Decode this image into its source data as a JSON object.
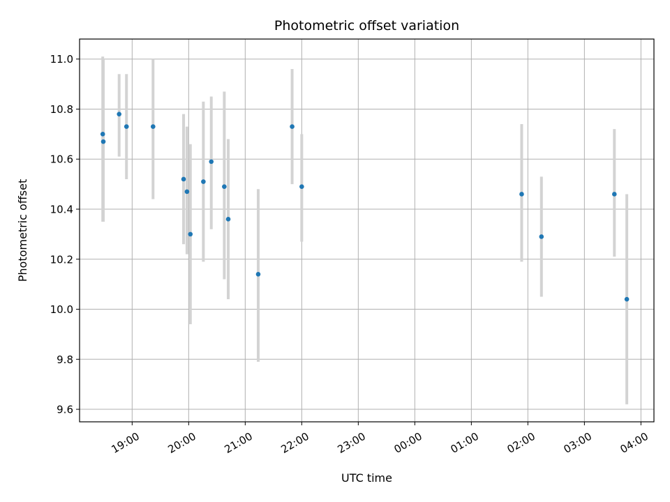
{
  "chart_data": {
    "type": "scatter",
    "title": "Photometric offset variation",
    "xlabel": "UTC time",
    "ylabel": "Photometric offset",
    "grid": true,
    "x_unit": "hours since 18:00 UTC",
    "xlim": [
      0.07,
      10.23
    ],
    "ylim": [
      9.55,
      11.08
    ],
    "xticks": [
      {
        "value": 1.0,
        "label": "19:00"
      },
      {
        "value": 2.0,
        "label": "20:00"
      },
      {
        "value": 3.0,
        "label": "21:00"
      },
      {
        "value": 4.0,
        "label": "22:00"
      },
      {
        "value": 5.0,
        "label": "23:00"
      },
      {
        "value": 6.0,
        "label": "00:00"
      },
      {
        "value": 7.0,
        "label": "01:00"
      },
      {
        "value": 8.0,
        "label": "02:00"
      },
      {
        "value": 9.0,
        "label": "03:00"
      },
      {
        "value": 10.0,
        "label": "04:00"
      }
    ],
    "yticks": [
      {
        "value": 9.6,
        "label": "9.6"
      },
      {
        "value": 9.8,
        "label": "9.8"
      },
      {
        "value": 10.0,
        "label": "10.0"
      },
      {
        "value": 10.2,
        "label": "10.2"
      },
      {
        "value": 10.4,
        "label": "10.4"
      },
      {
        "value": 10.6,
        "label": "10.6"
      },
      {
        "value": 10.8,
        "label": "10.8"
      },
      {
        "value": 11.0,
        "label": "11.0"
      }
    ],
    "colors": {
      "point": "#1f77b4",
      "errorbar": "#d3d3d3",
      "grid": "#b0b0b0",
      "axis": "#000000"
    },
    "points": [
      {
        "x": 0.48,
        "y": 10.7,
        "yerr_low": 10.35,
        "yerr_high": 11.01
      },
      {
        "x": 0.49,
        "y": 10.67,
        "yerr_low": 10.35,
        "yerr_high": 11.0
      },
      {
        "x": 0.77,
        "y": 10.78,
        "yerr_low": 10.61,
        "yerr_high": 10.94
      },
      {
        "x": 0.9,
        "y": 10.73,
        "yerr_low": 10.52,
        "yerr_high": 10.94
      },
      {
        "x": 1.37,
        "y": 10.73,
        "yerr_low": 10.44,
        "yerr_high": 11.0
      },
      {
        "x": 1.91,
        "y": 10.52,
        "yerr_low": 10.26,
        "yerr_high": 10.78
      },
      {
        "x": 1.97,
        "y": 10.47,
        "yerr_low": 10.22,
        "yerr_high": 10.73
      },
      {
        "x": 2.03,
        "y": 10.3,
        "yerr_low": 9.94,
        "yerr_high": 10.66
      },
      {
        "x": 2.26,
        "y": 10.51,
        "yerr_low": 10.19,
        "yerr_high": 10.83
      },
      {
        "x": 2.4,
        "y": 10.59,
        "yerr_low": 10.32,
        "yerr_high": 10.85
      },
      {
        "x": 2.63,
        "y": 10.49,
        "yerr_low": 10.12,
        "yerr_high": 10.87
      },
      {
        "x": 2.7,
        "y": 10.36,
        "yerr_low": 10.04,
        "yerr_high": 10.68
      },
      {
        "x": 3.23,
        "y": 10.14,
        "yerr_low": 9.79,
        "yerr_high": 10.48
      },
      {
        "x": 3.83,
        "y": 10.73,
        "yerr_low": 10.5,
        "yerr_high": 10.96
      },
      {
        "x": 4.0,
        "y": 10.49,
        "yerr_low": 10.27,
        "yerr_high": 10.7
      },
      {
        "x": 7.89,
        "y": 10.46,
        "yerr_low": 10.19,
        "yerr_high": 10.74
      },
      {
        "x": 8.24,
        "y": 10.29,
        "yerr_low": 10.05,
        "yerr_high": 10.53
      },
      {
        "x": 9.53,
        "y": 10.46,
        "yerr_low": 10.21,
        "yerr_high": 10.72
      },
      {
        "x": 9.75,
        "y": 10.04,
        "yerr_low": 9.62,
        "yerr_high": 10.46
      }
    ]
  }
}
